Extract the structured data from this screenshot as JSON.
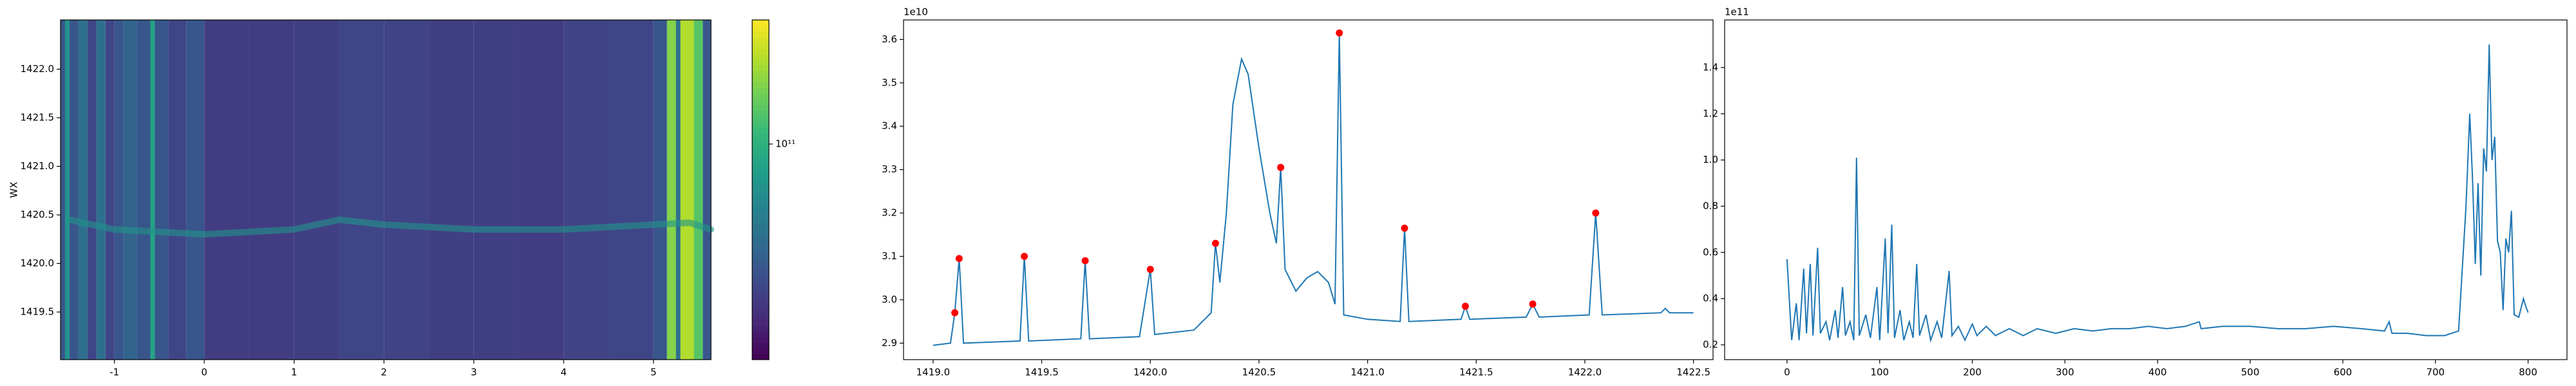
{
  "chart_data": [
    {
      "type": "heatmap",
      "ylabel": "WX",
      "xlim": [
        -1.6,
        5.64
      ],
      "ylim": [
        1419.01,
        1422.507
      ],
      "xticks": [
        -1,
        0,
        1,
        2,
        3,
        4,
        5
      ],
      "yticks": [
        1419.5,
        {
          "value": 1420,
          "label": "1420.0"
        },
        1420.5,
        {
          "value": 1421,
          "label": "1421.0"
        },
        1421.5,
        {
          "value": 1422,
          "label": "1422.0"
        }
      ],
      "x_edges": [
        -1.6,
        -1.55,
        -1.5,
        -1.4,
        -1.3,
        -1.2,
        -1.1,
        -1.0,
        -0.9,
        -0.75,
        -0.6,
        -0.55,
        -0.4,
        -0.2,
        0,
        0.5,
        1,
        1.5,
        2,
        2.5,
        3,
        3.5,
        4,
        4.5,
        5.0,
        5.15,
        5.25,
        5.3,
        5.45,
        5.55,
        5.64
      ],
      "values": [
        50000000000,
        80000000000,
        50000000000,
        60000000000,
        45000000000,
        60000000000,
        45000000000,
        50000000000,
        55000000000,
        50000000000,
        90000000000,
        50000000000,
        45000000000,
        50000000000,
        42000000000,
        42000000000,
        43000000000,
        45000000000,
        44000000000,
        43000000000,
        43000000000,
        42000000000,
        44000000000,
        45000000000,
        50000000000,
        140000000000,
        60000000000,
        160000000000,
        120000000000,
        50000000000
      ],
      "ridge": {
        "x": [
          -1.5,
          -1,
          0,
          1,
          1.5,
          2,
          3,
          4,
          5,
          5.4,
          5.64
        ],
        "y": [
          1420.45,
          1420.35,
          1420.3,
          1420.35,
          1420.45,
          1420.4,
          1420.35,
          1420.35,
          1420.4,
          1420.42,
          1420.35
        ],
        "value": 80000000000
      },
      "colorbar": {
        "log": true,
        "lim": [
          30000000000,
          200000000000
        ],
        "ticks": [
          {
            "value": 100000000000,
            "label": "10¹¹"
          }
        ]
      }
    },
    {
      "type": "line",
      "offset_label": "1e10",
      "xlim": [
        1418.864,
        1422.59
      ],
      "ylim": [
        2.862,
        3.645
      ],
      "xticks": [
        {
          "value": 1419,
          "label": "1419.0"
        },
        1419.5,
        {
          "value": 1420,
          "label": "1420.0"
        },
        1420.5,
        {
          "value": 1421,
          "label": "1421.0"
        },
        1421.5,
        {
          "value": 1422,
          "label": "1422.0"
        },
        1422.5
      ],
      "yticks": [
        2.9,
        {
          "value": 3,
          "label": "3.0"
        },
        3.1,
        3.2,
        3.3,
        3.4,
        3.5,
        3.6
      ],
      "series": [
        {
          "color": "#1f77b4",
          "x": [
            1419.0,
            1419.08,
            1419.1,
            1419.12,
            1419.14,
            1419.4,
            1419.42,
            1419.44,
            1419.68,
            1419.7,
            1419.72,
            1419.95,
            1420.0,
            1420.02,
            1420.2,
            1420.28,
            1420.3,
            1420.32,
            1420.35,
            1420.38,
            1420.42,
            1420.45,
            1420.5,
            1420.55,
            1420.58,
            1420.6,
            1420.62,
            1420.67,
            1420.72,
            1420.77,
            1420.82,
            1420.85,
            1420.87,
            1420.89,
            1421.0,
            1421.15,
            1421.17,
            1421.19,
            1421.43,
            1421.45,
            1421.47,
            1421.73,
            1421.76,
            1421.79,
            1422.02,
            1422.05,
            1422.08,
            1422.35,
            1422.37,
            1422.39,
            1422.5
          ],
          "values": [
            2.895,
            2.9,
            2.97,
            3.095,
            2.9,
            2.905,
            3.1,
            2.905,
            2.91,
            3.09,
            2.91,
            2.915,
            3.07,
            2.92,
            2.93,
            2.97,
            3.13,
            3.04,
            3.2,
            3.45,
            3.555,
            3.52,
            3.35,
            3.2,
            3.13,
            3.305,
            3.07,
            3.02,
            3.05,
            3.065,
            3.04,
            2.99,
            3.615,
            2.965,
            2.955,
            2.95,
            3.165,
            2.95,
            2.955,
            2.985,
            2.955,
            2.96,
            2.99,
            2.96,
            2.965,
            3.2,
            2.965,
            2.97,
            2.98,
            2.97,
            2.97
          ]
        }
      ],
      "peaks": {
        "color": "red",
        "x": [
          1419.1,
          1419.12,
          1419.42,
          1419.7,
          1420.0,
          1420.3,
          1420.6,
          1420.87,
          1421.17,
          1421.45,
          1421.76,
          1422.05
        ],
        "values": [
          2.97,
          3.095,
          3.1,
          3.09,
          3.07,
          3.13,
          3.305,
          3.615,
          3.165,
          2.985,
          2.99,
          3.2
        ]
      }
    },
    {
      "type": "line",
      "offset_label": "1e11",
      "xlim": [
        -67.4,
        842
      ],
      "ylim": [
        0.136,
        1.606
      ],
      "xticks": [
        0,
        100,
        200,
        300,
        400,
        500,
        600,
        700,
        800
      ],
      "yticks": [
        0.2,
        0.4,
        0.6,
        0.8,
        {
          "value": 1,
          "label": "1.0"
        },
        1.2,
        1.4
      ],
      "series": [
        {
          "color": "#1f77b4",
          "x": [
            0,
            5,
            10,
            13,
            18,
            21,
            25,
            28,
            33,
            36,
            42,
            46,
            52,
            55,
            60,
            63,
            68,
            72,
            75,
            78,
            85,
            90,
            97,
            100,
            106,
            109,
            113,
            116,
            122,
            126,
            132,
            136,
            140,
            143,
            150,
            155,
            162,
            167,
            175,
            178,
            185,
            192,
            200,
            205,
            215,
            225,
            240,
            255,
            270,
            290,
            310,
            330,
            350,
            370,
            390,
            410,
            430,
            445,
            447,
            470,
            500,
            530,
            560,
            590,
            620,
            645,
            650,
            653,
            670,
            690,
            710,
            725,
            733,
            737,
            740,
            743,
            746,
            749,
            752,
            755,
            758,
            761,
            764,
            767,
            770,
            773,
            776,
            779,
            782,
            785,
            790,
            795,
            798,
            800
          ],
          "values": [
            0.57,
            0.22,
            0.38,
            0.22,
            0.53,
            0.25,
            0.55,
            0.24,
            0.62,
            0.25,
            0.3,
            0.22,
            0.35,
            0.23,
            0.45,
            0.24,
            0.3,
            0.22,
            1.01,
            0.24,
            0.33,
            0.23,
            0.45,
            0.22,
            0.66,
            0.25,
            0.72,
            0.23,
            0.35,
            0.22,
            0.3,
            0.23,
            0.55,
            0.24,
            0.33,
            0.22,
            0.3,
            0.23,
            0.52,
            0.24,
            0.28,
            0.22,
            0.29,
            0.24,
            0.28,
            0.24,
            0.27,
            0.24,
            0.27,
            0.25,
            0.27,
            0.26,
            0.27,
            0.27,
            0.28,
            0.27,
            0.28,
            0.3,
            0.27,
            0.28,
            0.28,
            0.27,
            0.27,
            0.28,
            0.27,
            0.26,
            0.3,
            0.25,
            0.25,
            0.24,
            0.24,
            0.26,
            0.8,
            1.2,
            0.92,
            0.55,
            0.9,
            0.5,
            1.05,
            0.95,
            1.5,
            1.0,
            1.1,
            0.65,
            0.6,
            0.35,
            0.66,
            0.6,
            0.78,
            0.33,
            0.32,
            0.4,
            0.36,
            0.34
          ]
        }
      ]
    }
  ]
}
